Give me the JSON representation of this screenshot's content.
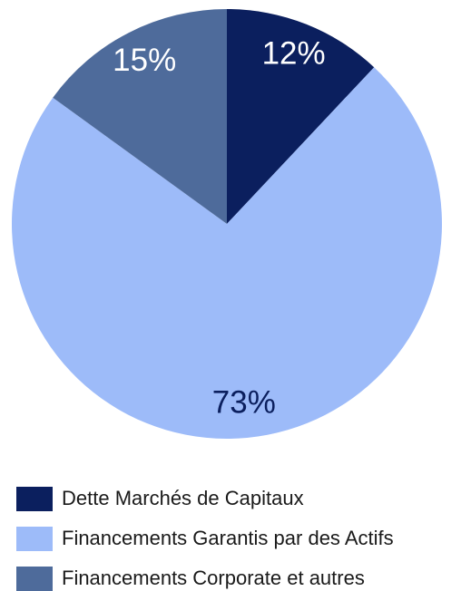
{
  "chart_data": {
    "type": "pie",
    "categories": [
      "Dette Marchés de Capitaux",
      "Financements Garantis par des Actifs",
      "Financements Corporate et autres"
    ],
    "values": [
      12,
      73,
      15
    ],
    "value_labels": [
      "12%",
      "73%",
      "15%"
    ],
    "colors": [
      "#0b1f5e",
      "#9dbbf9",
      "#4e6b9b"
    ],
    "label_colors": [
      "#ffffff",
      "#0b1f5e",
      "#ffffff"
    ],
    "legend": "bottom"
  }
}
